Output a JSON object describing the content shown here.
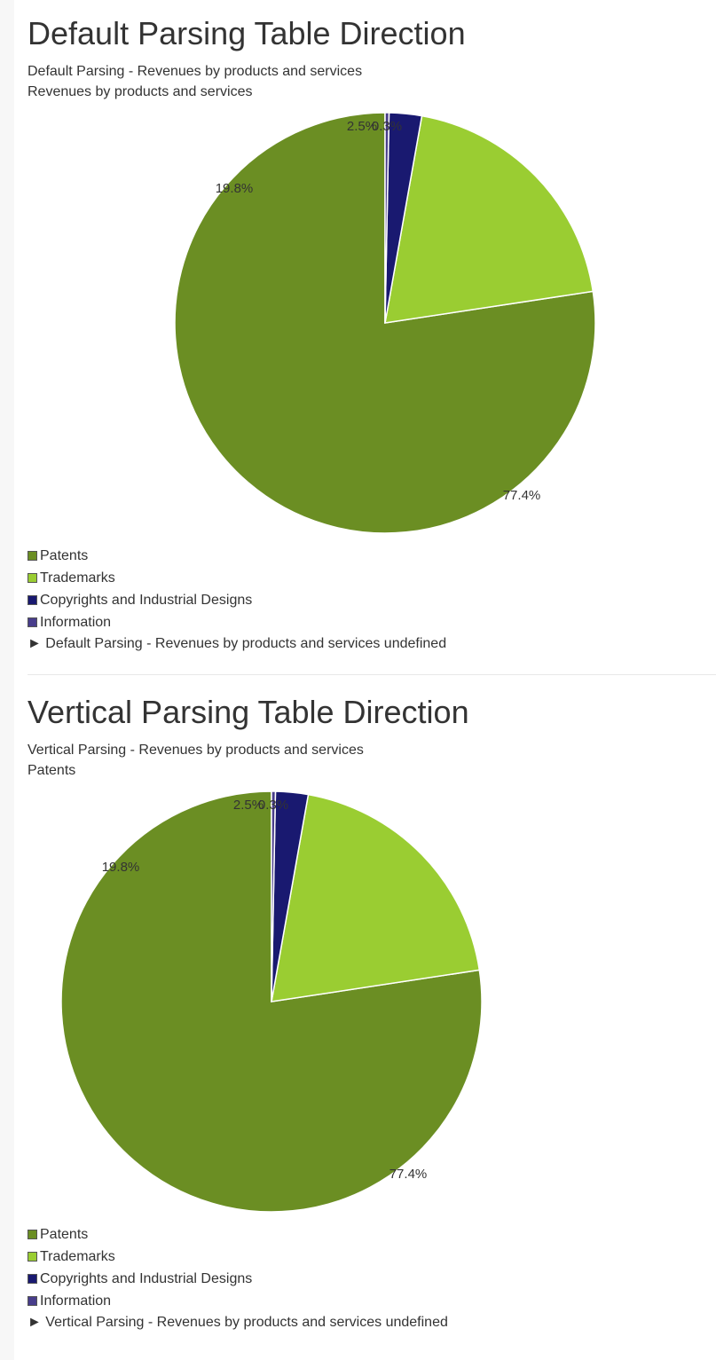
{
  "sections": [
    {
      "heading": "Default Parsing Table Direction",
      "caption1": "Default Parsing - Revenues by products and services",
      "caption2": "Revenues by products and services",
      "legend_footer": "► Default Parsing - Revenues by products and services undefined"
    },
    {
      "heading": "Vertical Parsing Table Direction",
      "caption1": "Vertical Parsing - Revenues by products and services",
      "caption2": "Patents",
      "legend_footer": "► Vertical Parsing - Revenues by products and services undefined"
    }
  ],
  "chart_data": [
    {
      "type": "pie",
      "title": "Default Parsing - Revenues by products and services",
      "subtitle": "Revenues by products and services",
      "categories": [
        "Patents",
        "Trademarks",
        "Copyrights and Industrial Designs",
        "Information"
      ],
      "values": [
        77.4,
        19.8,
        2.5,
        0.3
      ],
      "labels": [
        "77.4%",
        "19.8%",
        "2.5%",
        "0.3%"
      ],
      "colors": [
        "#6b8e23",
        "#9acd32",
        "#191970",
        "#483d8b"
      ],
      "legend_position": "bottom-left"
    },
    {
      "type": "pie",
      "title": "Vertical Parsing - Revenues by products and services",
      "subtitle": "Patents",
      "categories": [
        "Patents",
        "Trademarks",
        "Copyrights and Industrial Designs",
        "Information"
      ],
      "values": [
        77.4,
        19.8,
        2.5,
        0.3
      ],
      "labels": [
        "77.4%",
        "19.8%",
        "2.5%",
        "0.3%"
      ],
      "colors": [
        "#6b8e23",
        "#9acd32",
        "#191970",
        "#483d8b"
      ],
      "legend_position": "bottom-left"
    }
  ]
}
